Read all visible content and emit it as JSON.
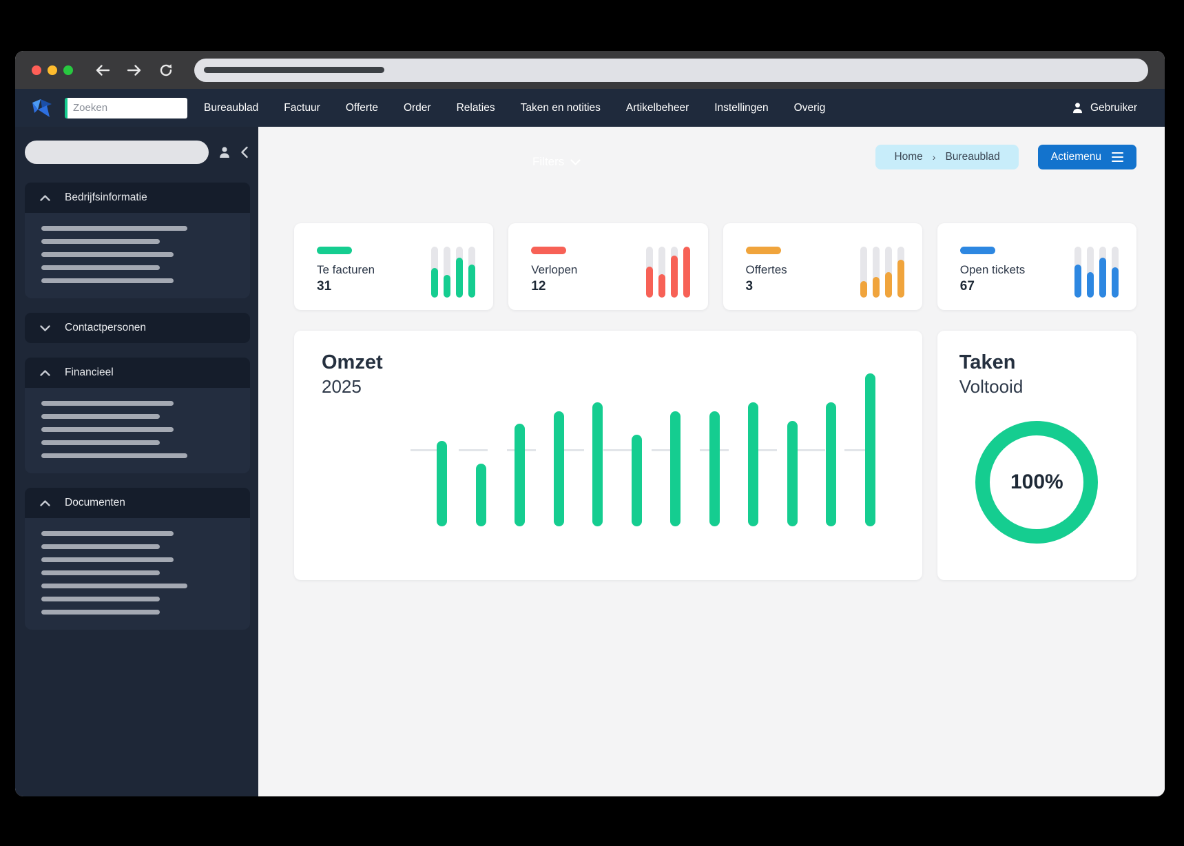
{
  "theme": {
    "green": "#15CD90",
    "red": "#F76156",
    "amber": "#F0A43C",
    "blue": "#2D87E1",
    "navbar_bg": "#1F2A3C",
    "sidebar_bg": "#1E2737",
    "breadcrumb_bg": "#C8EDFA",
    "action_button_bg": "#1373CD",
    "track_gray": "#E6E6EA"
  },
  "browser": {
    "traffic_lights": {
      "close": "#FF5F57",
      "minimize": "#FEBC2E",
      "maximize": "#28C840"
    },
    "icons": [
      "back-arrow",
      "forward-arrow",
      "reload"
    ]
  },
  "navbar": {
    "search_placeholder": "Zoeken",
    "items": [
      "Bureaublad",
      "Factuur",
      "Offerte",
      "Order",
      "Relaties",
      "Taken en notities",
      "Artikelbeheer",
      "Instellingen",
      "Overig"
    ],
    "user_label": "Gebruiker"
  },
  "sidebar": {
    "sections": [
      {
        "label": "Bedrijfsinformatie",
        "expanded": true,
        "skeleton_widths": [
          212,
          172,
          192,
          172,
          192
        ]
      },
      {
        "label": "Contactpersonen",
        "expanded": false,
        "skeleton_widths": []
      },
      {
        "label": "Financieel",
        "expanded": true,
        "skeleton_widths": [
          192,
          172,
          192,
          172,
          212
        ]
      },
      {
        "label": "Documenten",
        "expanded": true,
        "skeleton_widths": [
          192,
          172,
          192,
          172,
          212,
          172,
          172
        ]
      }
    ]
  },
  "toolbar": {
    "filters_label": "Filters",
    "breadcrumb": [
      "Home",
      "Bureaublad"
    ],
    "breadcrumb_separator": "›",
    "action_button": "Actiemenu"
  },
  "stat_cards": [
    {
      "label": "Te facturen",
      "value": "31",
      "color": "#15CD90",
      "bars_pct": [
        58,
        45,
        78,
        65
      ]
    },
    {
      "label": "Verlopen",
      "value": "12",
      "color": "#F76156",
      "bars_pct": [
        61,
        46,
        83,
        100
      ]
    },
    {
      "label": "Offertes",
      "value": "3",
      "color": "#F0A43C",
      "bars_pct": [
        32,
        40,
        50,
        75
      ]
    },
    {
      "label": "Open tickets",
      "value": "67",
      "color": "#2D87E1",
      "bars_pct": [
        65,
        50,
        78,
        60
      ]
    }
  ],
  "chart_data": {
    "type": "bar",
    "title": "Omzet",
    "subtitle": "2025",
    "categories": [],
    "values_pct_of_max": [
      56,
      41,
      67,
      75,
      81,
      60,
      75,
      75,
      81,
      69,
      81,
      100
    ],
    "reference_line_pct_of_max": 50,
    "color": "#15CD90",
    "grid": false,
    "axis_labels_visible": false
  },
  "taken": {
    "title": "Taken",
    "subtitle": "Voltooid",
    "percent": 100,
    "percent_display": "100%"
  }
}
